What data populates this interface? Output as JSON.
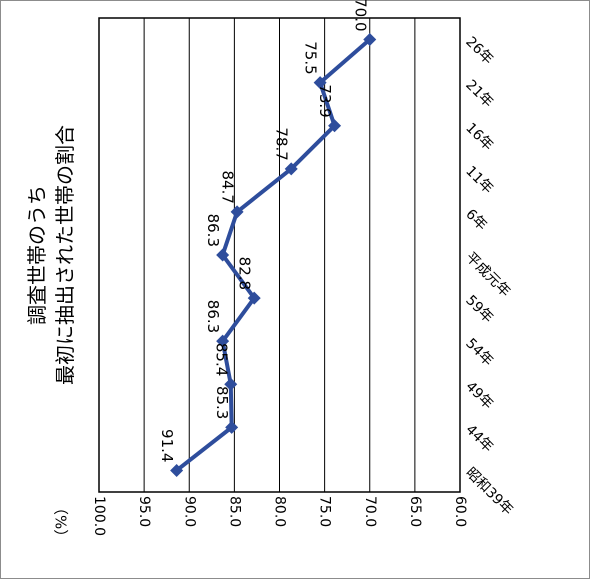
{
  "chart_data": {
    "type": "line",
    "orientation": "rotated-90-clockwise",
    "title_lines": [
      "調査世帯のうち",
      "最初に抽出された世帯の割合"
    ],
    "unit_label": "（%）",
    "value_axis": {
      "range": [
        100.0,
        60.0
      ],
      "ticks": [
        "100.0",
        "95.0",
        "90.0",
        "85.0",
        "80.0",
        "75.0",
        "70.0",
        "65.0",
        "60.0"
      ],
      "grid": true
    },
    "categories": [
      "昭和39年",
      "44年",
      "49年",
      "54年",
      "59年",
      "平成元年",
      "6年",
      "11年",
      "16年",
      "21年",
      "26年"
    ],
    "series": [
      {
        "color": "#2e4d9c",
        "marker": "diamond",
        "values": [
          91.4,
          85.3,
          85.4,
          86.3,
          82.8,
          86.3,
          84.7,
          78.7,
          73.9,
          75.5,
          70.0
        ],
        "labels": [
          "91.4",
          "85.3",
          "85.4",
          "86.3",
          "82.8",
          "86.3",
          "84.7",
          "78.7",
          "73.9",
          "75.5",
          "70.0"
        ]
      }
    ]
  }
}
